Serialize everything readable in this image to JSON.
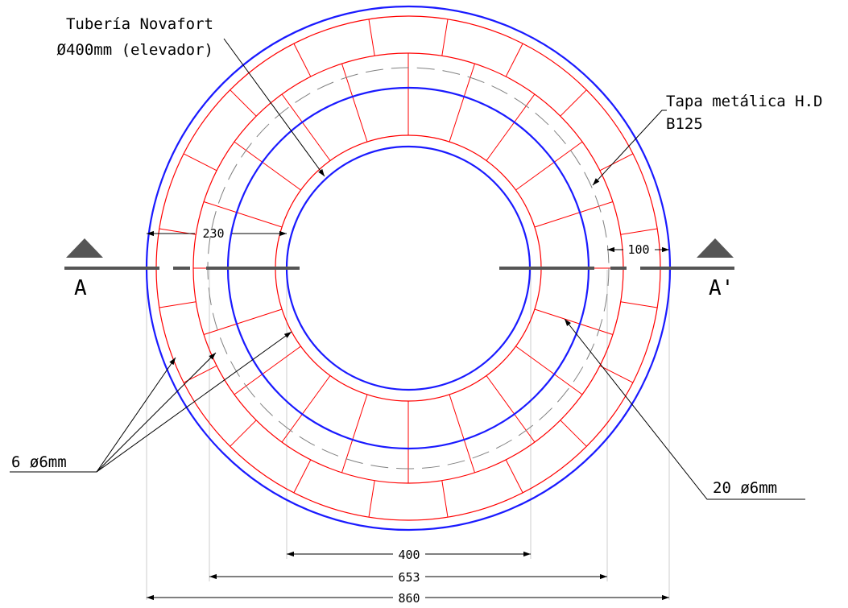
{
  "labels": {
    "pipe_line1": "Tubería Novafort",
    "pipe_line2": "Ø400mm (elevador)",
    "cover_line1": "Tapa metálica H.D",
    "cover_line2": "B125",
    "rebar_6": "6  ø6mm",
    "rebar_20": "20  ø6mm"
  },
  "section": {
    "left": "A",
    "right": "A'"
  },
  "dimensions": {
    "d400": "400",
    "d653": "653",
    "d860": "860",
    "w230": "230",
    "w100": "100"
  },
  "colors": {
    "outline": "#1a1aff",
    "rebar": "#ff0000",
    "hidden": "#808080",
    "section": "#555555",
    "dimension": "#000000",
    "extension": "#cccccc"
  }
}
